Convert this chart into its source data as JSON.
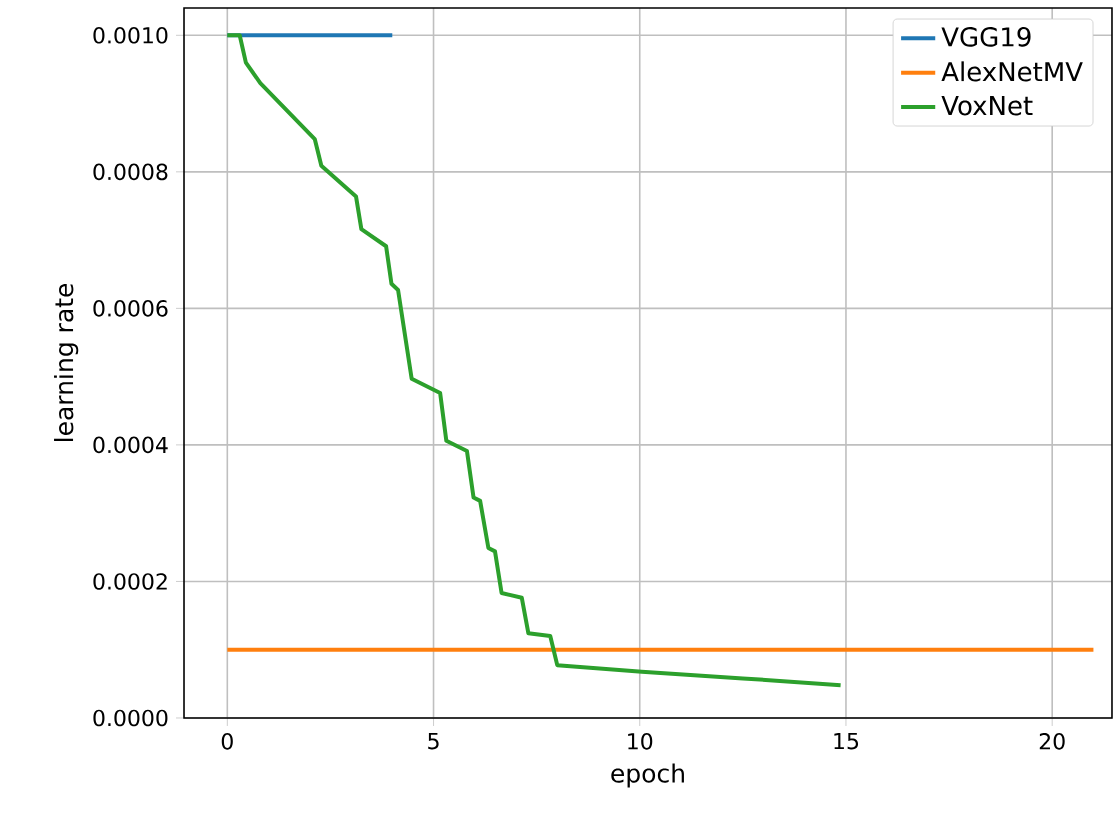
{
  "chart_data": {
    "type": "line",
    "xlabel": "epoch",
    "ylabel": "learning rate",
    "grid": true,
    "legend": "top right",
    "xlim": [
      -1.05,
      21.45
    ],
    "ylim": [
      0,
      0.00104
    ],
    "xticks": [
      0,
      5,
      10,
      15,
      20
    ],
    "yticks": [
      {
        "value": 0,
        "label": "0.0000"
      },
      {
        "value": 0.0002,
        "label": "0.0002"
      },
      {
        "value": 0.0004,
        "label": "0.0004"
      },
      {
        "value": 0.0006,
        "label": "0.0006"
      },
      {
        "value": 0.0008,
        "label": "0.0008"
      },
      {
        "value": 0.001,
        "label": "0.0010"
      }
    ],
    "series": [
      {
        "name": "VGG19",
        "color": "#1f77b4",
        "x": [
          0,
          4
        ],
        "values": [
          0.001,
          0.001
        ]
      },
      {
        "name": "AlexNetMV",
        "color": "#ff7f0e",
        "x": [
          0,
          21
        ],
        "values": [
          0.0001,
          0.0001
        ]
      },
      {
        "name": "VoxNet",
        "color": "#2ca02c",
        "x": [
          0,
          0.3,
          0.45,
          0.8,
          2.12,
          2.28,
          3.12,
          3.25,
          3.85,
          3.98,
          4.14,
          4.47,
          5.16,
          5.31,
          5.81,
          5.97,
          6.13,
          6.33,
          6.49,
          6.65,
          7.14,
          7.3,
          7.83,
          8.0,
          10.05,
          12.5,
          14.87
        ],
        "values": [
          0.001,
          0.001,
          0.00096,
          0.00093,
          0.000848,
          0.000809,
          0.000764,
          0.000716,
          0.000691,
          0.000636,
          0.000627,
          0.000497,
          0.000476,
          0.000406,
          0.000391,
          0.000323,
          0.000318,
          0.000249,
          0.000244,
          0.000183,
          0.000176,
          0.000124,
          0.00012,
          7.74e-05,
          6.76e-05,
          5.8e-05,
          4.8e-05
        ]
      }
    ]
  }
}
